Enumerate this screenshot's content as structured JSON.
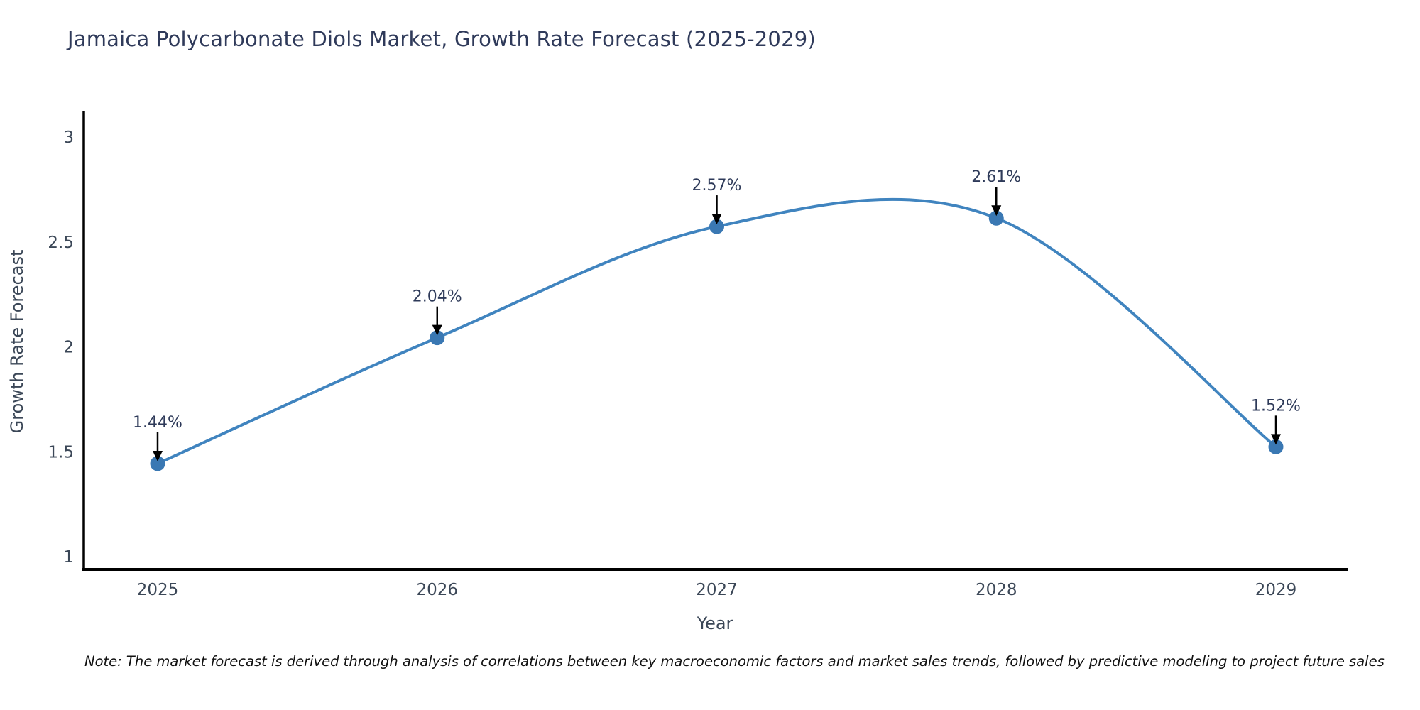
{
  "title": "Jamaica Polycarbonate Diols Market, Growth Rate Forecast (2025-2029)",
  "note": "Note: The market forecast is derived through analysis of correlations between key macroeconomic factors and market sales trends, followed by predictive modeling to project future sales",
  "chart_data": {
    "type": "line",
    "line_shape": "spline",
    "title": "Jamaica Polycarbonate Diols Market, Growth Rate Forecast (2025-2029)",
    "xlabel": "Year",
    "ylabel": "Growth Rate Forecast",
    "x": [
      "2025",
      "2026",
      "2027",
      "2028",
      "2029"
    ],
    "series": [
      {
        "name": "Growth Rate Forecast",
        "values": [
          1.44,
          2.04,
          2.57,
          2.61,
          1.52
        ]
      }
    ],
    "point_labels": [
      "1.44%",
      "2.04%",
      "2.57%",
      "2.61%",
      "1.52%"
    ],
    "yticks": [
      "1",
      "1.5",
      "2",
      "2.5",
      "3"
    ],
    "ytick_values": [
      1,
      1.5,
      2,
      2.5,
      3
    ],
    "ylim": [
      0.94,
      3.1
    ],
    "grid": false,
    "legend": "none",
    "colors": {
      "line": "#4084bf",
      "marker": "#3a78b3",
      "axis": "#000000",
      "arrow": "#000000",
      "text": "#2e3a59",
      "tick_text": "#3b4757"
    }
  }
}
